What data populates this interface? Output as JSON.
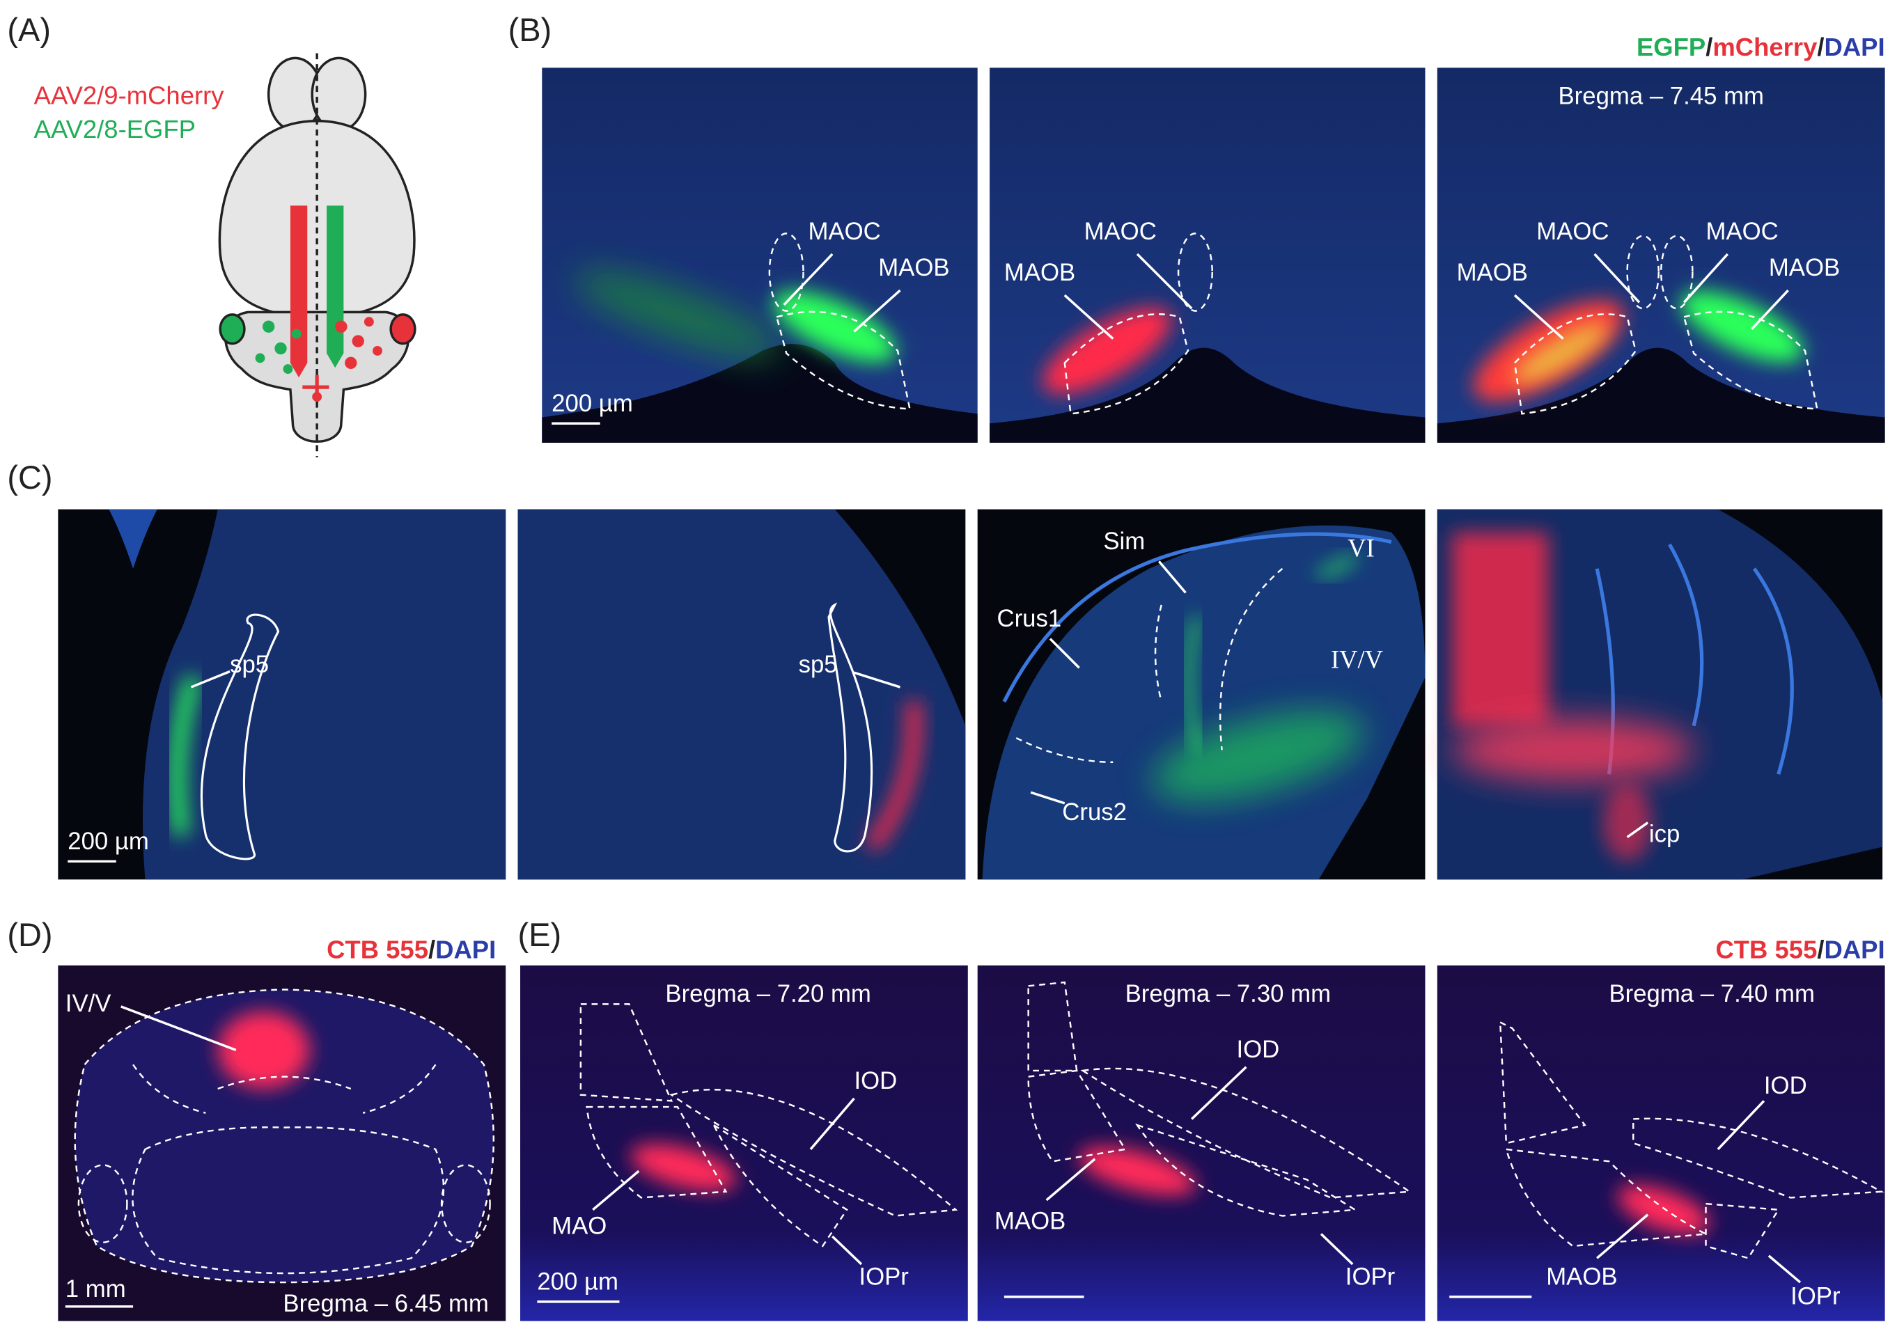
{
  "panel_a": {
    "letter": "(A)",
    "vectors": [
      "AAV2/9-mCherry",
      "AAV2/8-EGFP"
    ]
  },
  "panel_b": {
    "letter": "(B)",
    "legend": [
      "EGFP",
      "/",
      "mCherry",
      "/",
      "DAPI"
    ],
    "images": [
      {
        "labels": [
          "MAOC",
          "MAOB"
        ],
        "scale_bar": "200 µm"
      },
      {
        "labels": [
          "MAOC",
          "MAOB"
        ]
      },
      {
        "bregma": "Bregma – 7.45 mm",
        "labels": [
          "MAOC",
          "MAOB",
          "MAOC",
          "MAOB"
        ]
      }
    ]
  },
  "panel_c": {
    "letter": "(C)",
    "images": [
      {
        "labels": [
          "sp5"
        ],
        "scale_bar": "200 µm"
      },
      {
        "labels": [
          "sp5"
        ]
      },
      {
        "labels": [
          "Sim",
          "VI",
          "Crus1",
          "IV/V",
          "Crus2"
        ]
      },
      {
        "labels": [
          "icp"
        ]
      }
    ]
  },
  "panel_d": {
    "letter": "(D)",
    "legend": [
      "CTB 555",
      "/",
      "DAPI"
    ],
    "labels": [
      "IV/V"
    ],
    "scale_bar": "1 mm",
    "bregma": "Bregma – 6.45 mm"
  },
  "panel_e": {
    "letter": "(E)",
    "legend": [
      "CTB 555",
      "/",
      "DAPI"
    ],
    "images": [
      {
        "bregma": "Bregma – 7.20 mm",
        "labels": [
          "IOD",
          "MAO",
          "IOPr"
        ],
        "scale_bar": "200 µm"
      },
      {
        "bregma": "Bregma – 7.30 mm",
        "labels": [
          "IOD",
          "MAOB",
          "IOPr"
        ]
      },
      {
        "bregma": "Bregma – 7.40 mm",
        "labels": [
          "IOD",
          "MAOB",
          "IOPr"
        ]
      }
    ]
  }
}
